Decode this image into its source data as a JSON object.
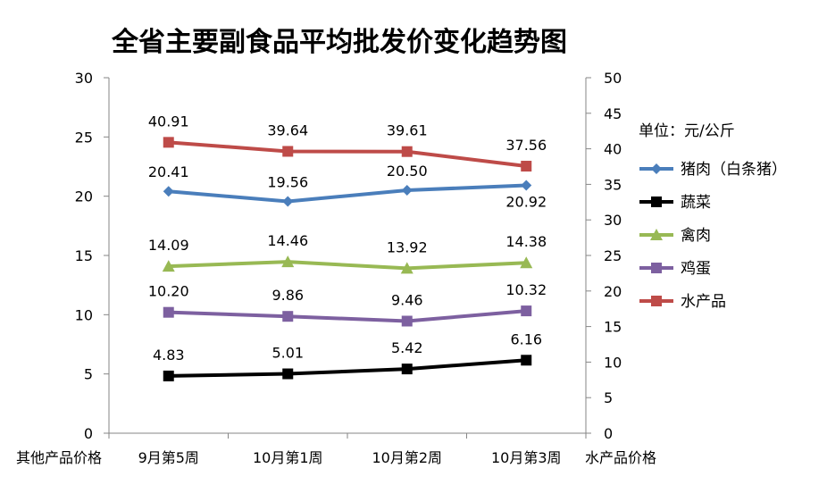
{
  "chart_data": {
    "type": "line",
    "title": "全省主要副食品平均批发价变化趋势图",
    "unit_label": "单位：元/公斤",
    "xlabel_left": "其他产品价格",
    "xlabel_right": "水产品价格",
    "categories": [
      "9月第5周",
      "10月第1周",
      "10月第2周",
      "10月第3周"
    ],
    "y_left": {
      "ylim": [
        0,
        30
      ],
      "ticks": [
        "0",
        "5",
        "10",
        "15",
        "20",
        "25",
        "30"
      ]
    },
    "y_right": {
      "ylim": [
        0,
        50
      ],
      "ticks": [
        "0",
        "5",
        "10",
        "15",
        "20",
        "25",
        "30",
        "35",
        "40",
        "45",
        "50"
      ]
    },
    "series": [
      {
        "name": "猪肉（白条猪）",
        "axis": "left",
        "color": "#4a7ebb",
        "marker": "diamond",
        "values": [
          20.41,
          19.56,
          20.5,
          20.92
        ],
        "labels": [
          "20.41",
          "19.56",
          "20.50",
          "20.92"
        ]
      },
      {
        "name": "蔬菜",
        "axis": "left",
        "color": "#000000",
        "marker": "square",
        "values": [
          4.83,
          5.01,
          5.42,
          6.16
        ],
        "labels": [
          "4.83",
          "5.01",
          "5.42",
          "6.16"
        ]
      },
      {
        "name": "禽肉",
        "axis": "left",
        "color": "#98b954",
        "marker": "triangle",
        "values": [
          14.09,
          14.46,
          13.92,
          14.38
        ],
        "labels": [
          "14.09",
          "14.46",
          "13.92",
          "14.38"
        ]
      },
      {
        "name": "鸡蛋",
        "axis": "left",
        "color": "#7d60a0",
        "marker": "square",
        "values": [
          10.2,
          9.86,
          9.46,
          10.32
        ],
        "labels": [
          "10.20",
          "9.86",
          "9.46",
          "10.32"
        ]
      },
      {
        "name": "水产品",
        "axis": "right",
        "color": "#be4b48",
        "marker": "square",
        "values": [
          40.91,
          39.64,
          39.61,
          37.56
        ],
        "labels": [
          "40.91",
          "39.64",
          "39.61",
          "37.56"
        ]
      }
    ]
  }
}
